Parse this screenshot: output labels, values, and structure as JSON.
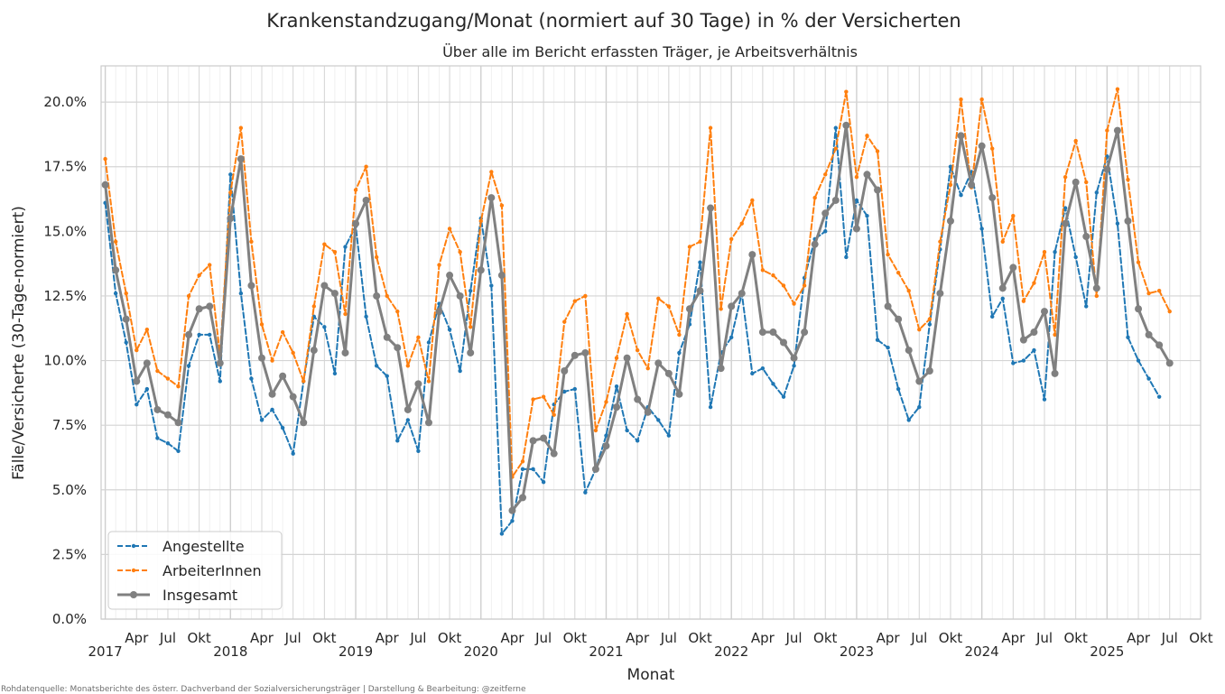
{
  "chart_data": {
    "type": "line",
    "title": "Krankenstandzugang/Monat (normiert auf 30 Tage) in % der Versicherten",
    "subtitle": "Über alle im Bericht erfassten Träger, je Arbeitsverhältnis",
    "xlabel": "Monat",
    "ylabel": "Fälle/Versicherte (30-Tage-normiert)",
    "ylim": [
      0,
      21.4
    ],
    "yticks": [
      "0.0%",
      "2.5%",
      "5.0%",
      "7.5%",
      "10.0%",
      "12.5%",
      "15.0%",
      "17.5%",
      "20.0%"
    ],
    "ytick_values": [
      0,
      2.5,
      5.0,
      7.5,
      10.0,
      12.5,
      15.0,
      17.5,
      20.0
    ],
    "x_start": "2017-01",
    "x_end": "2025-07",
    "x_month_labels": [
      "Apr",
      "Jul",
      "Okt"
    ],
    "x_year_labels": [
      "2017",
      "2018",
      "2019",
      "2020",
      "2021",
      "2022",
      "2023",
      "2024",
      "2025"
    ],
    "grid": true,
    "legend_position": "bottom-left",
    "series": [
      {
        "name": "Angestellte",
        "color": "#1f77b4",
        "style": "dashed",
        "values": [
          16.1,
          12.6,
          10.7,
          8.3,
          8.9,
          7.0,
          6.8,
          6.5,
          9.8,
          11.0,
          11.0,
          9.2,
          17.2,
          12.6,
          9.3,
          7.7,
          8.1,
          7.4,
          6.4,
          9.2,
          11.7,
          11.3,
          9.5,
          14.4,
          15.2,
          11.7,
          9.8,
          9.4,
          6.9,
          7.7,
          6.5,
          10.7,
          12.2,
          11.2,
          9.6,
          12.7,
          15.5,
          12.9,
          3.3,
          3.8,
          5.8,
          5.8,
          5.3,
          8.3,
          8.8,
          8.9,
          4.9,
          5.8,
          7.1,
          9.0,
          7.3,
          6.9,
          8.2,
          7.7,
          7.1,
          10.3,
          11.4,
          13.8,
          8.2,
          10.3,
          10.9,
          12.6,
          9.5,
          9.7,
          9.1,
          8.6,
          9.8,
          13.2,
          14.7,
          15.0,
          19.0,
          14.0,
          16.2,
          15.6,
          10.8,
          10.5,
          8.9,
          7.7,
          8.2,
          11.4,
          14.3,
          17.5,
          16.4,
          17.3,
          15.1,
          11.7,
          12.4,
          9.9,
          10.0,
          10.4,
          8.5,
          14.2,
          15.9,
          14.0,
          12.1,
          16.5,
          17.9,
          15.3,
          10.9,
          10.0,
          9.3,
          8.6
        ]
      },
      {
        "name": "ArbeiterInnen",
        "color": "#ff7f0e",
        "style": "dashed",
        "values": [
          17.8,
          14.6,
          12.6,
          10.4,
          11.2,
          9.6,
          9.3,
          9.0,
          12.5,
          13.3,
          13.7,
          10.2,
          16.5,
          19.0,
          14.6,
          11.4,
          10.0,
          11.1,
          10.3,
          9.2,
          12.1,
          14.5,
          14.2,
          11.8,
          16.6,
          17.5,
          14.0,
          12.5,
          11.9,
          9.8,
          10.9,
          9.2,
          13.7,
          15.1,
          14.2,
          11.3,
          15.4,
          17.3,
          16.0,
          5.5,
          6.1,
          8.5,
          8.6,
          7.9,
          11.5,
          12.3,
          12.5,
          7.3,
          8.4,
          10.1,
          11.8,
          10.4,
          9.7,
          12.4,
          12.1,
          11.0,
          14.4,
          14.6,
          19.0,
          12.0,
          14.7,
          15.3,
          16.2,
          13.5,
          13.3,
          12.9,
          12.2,
          12.9,
          16.3,
          17.2,
          18.2,
          20.4,
          17.1,
          18.7,
          18.1,
          14.1,
          13.4,
          12.7,
          11.2,
          11.6,
          14.6,
          16.8,
          20.1,
          16.7,
          20.1,
          18.2,
          14.6,
          15.6,
          12.3,
          13.0,
          14.2,
          11.0,
          17.1,
          18.5,
          16.9,
          12.5,
          18.9,
          20.5,
          17.0,
          13.8,
          12.6,
          12.7,
          11.9
        ]
      },
      {
        "name": "Insgesamt",
        "color": "#808080",
        "style": "solid",
        "values": [
          16.8,
          13.5,
          11.6,
          9.2,
          9.9,
          8.1,
          7.9,
          7.6,
          11.0,
          12.0,
          12.1,
          9.9,
          15.5,
          17.8,
          12.9,
          10.1,
          8.7,
          9.4,
          8.6,
          7.6,
          10.4,
          12.9,
          12.6,
          10.3,
          15.3,
          16.2,
          12.5,
          10.9,
          10.5,
          8.1,
          9.1,
          7.6,
          11.9,
          13.3,
          12.5,
          10.3,
          13.5,
          16.3,
          13.3,
          4.2,
          4.7,
          6.9,
          7.0,
          6.4,
          9.6,
          10.2,
          10.3,
          5.8,
          6.7,
          8.2,
          10.1,
          8.5,
          8.0,
          9.9,
          9.5,
          8.7,
          12.0,
          12.7,
          15.9,
          9.7,
          12.1,
          12.6,
          14.1,
          11.1,
          11.1,
          10.7,
          10.1,
          11.1,
          14.5,
          15.7,
          16.2,
          19.1,
          15.1,
          17.2,
          16.6,
          12.1,
          11.6,
          10.4,
          9.2,
          9.6,
          12.6,
          15.4,
          18.7,
          16.8,
          18.3,
          16.3,
          12.8,
          13.6,
          10.8,
          11.1,
          11.9,
          9.5,
          15.3,
          16.9,
          14.8,
          12.8,
          17.4,
          18.9,
          15.4,
          12.0,
          11.0,
          10.6,
          9.9
        ]
      }
    ]
  },
  "source_note": "Rohdatenquelle: Monatsberichte des österr. Dachverband der Sozialversicherungsträger | Darstellung & Bearbeitung: @zeitferne"
}
